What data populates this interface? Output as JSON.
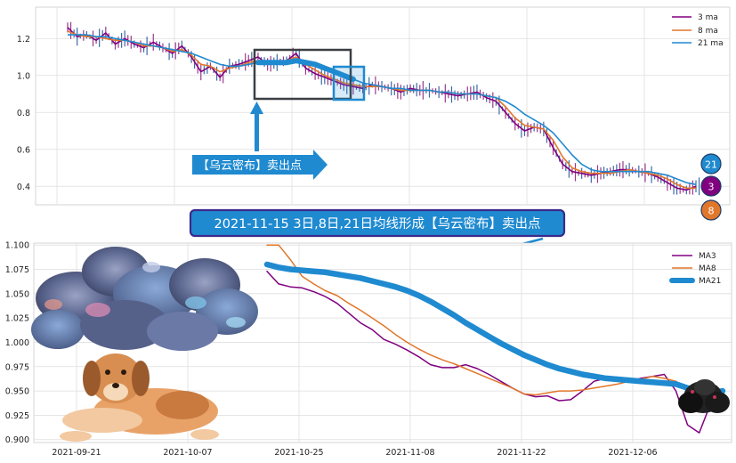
{
  "chart_data": [
    {
      "type": "line",
      "title": "",
      "xlabel": "",
      "ylabel": "",
      "ylim": [
        0.3,
        1.37
      ],
      "yticks": [
        0.4,
        0.6,
        0.8,
        1.0,
        1.2
      ],
      "ytick_labels": [
        "0.4",
        "0.6",
        "0.8",
        "1.0",
        "1.2"
      ],
      "grid": true,
      "legend": "top-right",
      "series": [
        {
          "name": "3 ma",
          "color": "#800080",
          "values": [
            1.26,
            1.21,
            1.22,
            1.19,
            1.23,
            1.17,
            1.2,
            1.17,
            1.15,
            1.18,
            1.15,
            1.12,
            1.16,
            1.1,
            1.02,
            1.05,
            0.99,
            1.05,
            1.06,
            1.08,
            1.1,
            1.06,
            1.07,
            1.08,
            1.12,
            1.04,
            1.01,
            0.99,
            0.97,
            0.95,
            0.94,
            0.93,
            0.95,
            0.94,
            0.93,
            0.91,
            0.93,
            0.92,
            0.92,
            0.91,
            0.9,
            0.89,
            0.9,
            0.91,
            0.88,
            0.86,
            0.8,
            0.74,
            0.7,
            0.72,
            0.71,
            0.61,
            0.52,
            0.48,
            0.47,
            0.46,
            0.47,
            0.48,
            0.49,
            0.49,
            0.48,
            0.47,
            0.45,
            0.42,
            0.39,
            0.38,
            0.4
          ]
        },
        {
          "name": "8 ma",
          "color": "#e0772b",
          "values": [
            1.24,
            1.22,
            1.21,
            1.21,
            1.2,
            1.19,
            1.19,
            1.18,
            1.16,
            1.16,
            1.15,
            1.13,
            1.14,
            1.11,
            1.06,
            1.05,
            1.02,
            1.04,
            1.05,
            1.07,
            1.08,
            1.07,
            1.07,
            1.08,
            1.1,
            1.06,
            1.03,
            1.0,
            0.98,
            0.96,
            0.95,
            0.94,
            0.94,
            0.94,
            0.93,
            0.92,
            0.92,
            0.92,
            0.92,
            0.91,
            0.91,
            0.9,
            0.9,
            0.9,
            0.89,
            0.88,
            0.83,
            0.77,
            0.73,
            0.72,
            0.71,
            0.65,
            0.56,
            0.5,
            0.48,
            0.47,
            0.47,
            0.47,
            0.48,
            0.49,
            0.48,
            0.47,
            0.46,
            0.44,
            0.41,
            0.39,
            0.39
          ]
        },
        {
          "name": "21 ma",
          "color": "#1f8ad0",
          "values": [
            1.22,
            1.22,
            1.22,
            1.21,
            1.21,
            1.2,
            1.19,
            1.18,
            1.17,
            1.16,
            1.15,
            1.14,
            1.13,
            1.12,
            1.1,
            1.08,
            1.06,
            1.05,
            1.05,
            1.06,
            1.07,
            1.07,
            1.07,
            1.07,
            1.08,
            1.07,
            1.06,
            1.04,
            1.02,
            1.0,
            0.98,
            0.96,
            0.95,
            0.94,
            0.93,
            0.93,
            0.92,
            0.92,
            0.92,
            0.91,
            0.91,
            0.9,
            0.9,
            0.9,
            0.89,
            0.88,
            0.86,
            0.83,
            0.79,
            0.76,
            0.73,
            0.69,
            0.63,
            0.57,
            0.52,
            0.49,
            0.48,
            0.48,
            0.48,
            0.48,
            0.48,
            0.48,
            0.47,
            0.46,
            0.44,
            0.42,
            0.41
          ]
        }
      ],
      "badges": [
        {
          "label": "21",
          "color": "#1f8ad0",
          "value": 0.42
        },
        {
          "label": "3",
          "color": "#800080",
          "value": 0.4
        },
        {
          "label": "8",
          "color": "#e0772b",
          "value": 0.39
        }
      ]
    },
    {
      "type": "line",
      "title": "",
      "xlabel": "",
      "ylabel": "",
      "ylim": [
        0.897,
        1.102
      ],
      "yticks": [
        0.9,
        0.925,
        0.95,
        0.975,
        1.0,
        1.025,
        1.05,
        1.075,
        1.1
      ],
      "ytick_labels": [
        "0.900",
        "0.925",
        "0.950",
        "0.975",
        "1.000",
        "1.025",
        "1.050",
        "1.075",
        "1.100"
      ],
      "xticks": [
        "2021-09-21",
        "2021-10-07",
        "2021-10-25",
        "2021-11-08",
        "2021-11-22",
        "2021-12-06"
      ],
      "grid": true,
      "legend": "top-right",
      "series": [
        {
          "name": "MA3",
          "color": "#800080",
          "values": [
            1.073,
            1.06,
            1.057,
            1.056,
            1.052,
            1.047,
            1.04,
            1.03,
            1.02,
            1.013,
            1.003,
            0.998,
            0.992,
            0.985,
            0.977,
            0.974,
            0.974,
            0.977,
            0.973,
            0.967,
            0.96,
            0.953,
            0.947,
            0.944,
            0.945,
            0.94,
            0.941,
            0.95,
            0.96,
            0.963,
            0.961,
            0.96,
            0.963,
            0.965,
            0.967,
            0.95,
            0.915,
            0.907,
            0.938,
            0.948
          ]
        },
        {
          "name": "MA8",
          "color": "#e0772b",
          "values": [
            1.1,
            1.1,
            1.085,
            1.068,
            1.06,
            1.053,
            1.048,
            1.04,
            1.033,
            1.025,
            1.017,
            1.008,
            1.0,
            0.993,
            0.987,
            0.982,
            0.978,
            0.973,
            0.968,
            0.963,
            0.958,
            0.953,
            0.947,
            0.946,
            0.948,
            0.95,
            0.95,
            0.951,
            0.953,
            0.955,
            0.957,
            0.96,
            0.962,
            0.965,
            0.963,
            0.96,
            0.952,
            0.945,
            0.94,
            0.945
          ]
        },
        {
          "name": "MA21",
          "color": "#1f8ad0",
          "values": [
            1.08,
            1.077,
            1.075,
            1.074,
            1.073,
            1.072,
            1.07,
            1.068,
            1.066,
            1.063,
            1.06,
            1.057,
            1.053,
            1.048,
            1.042,
            1.035,
            1.028,
            1.02,
            1.013,
            1.006,
            0.999,
            0.993,
            0.987,
            0.982,
            0.977,
            0.973,
            0.97,
            0.967,
            0.965,
            0.963,
            0.962,
            0.961,
            0.96,
            0.959,
            0.958,
            0.957,
            0.953,
            0.95,
            0.948,
            0.95
          ]
        }
      ]
    }
  ],
  "annotations": {
    "callout_arrow_label": "【乌云密布】卖出点",
    "banner_text": "2021-11-15 3日,8日,21日均线形成【乌云密布】卖出点"
  },
  "colors": {
    "accent_blue": "#1f8ad0",
    "banner_border": "#3b2a8c",
    "grid": "#d9d9d9",
    "highlight_box": "#3a3f44"
  }
}
